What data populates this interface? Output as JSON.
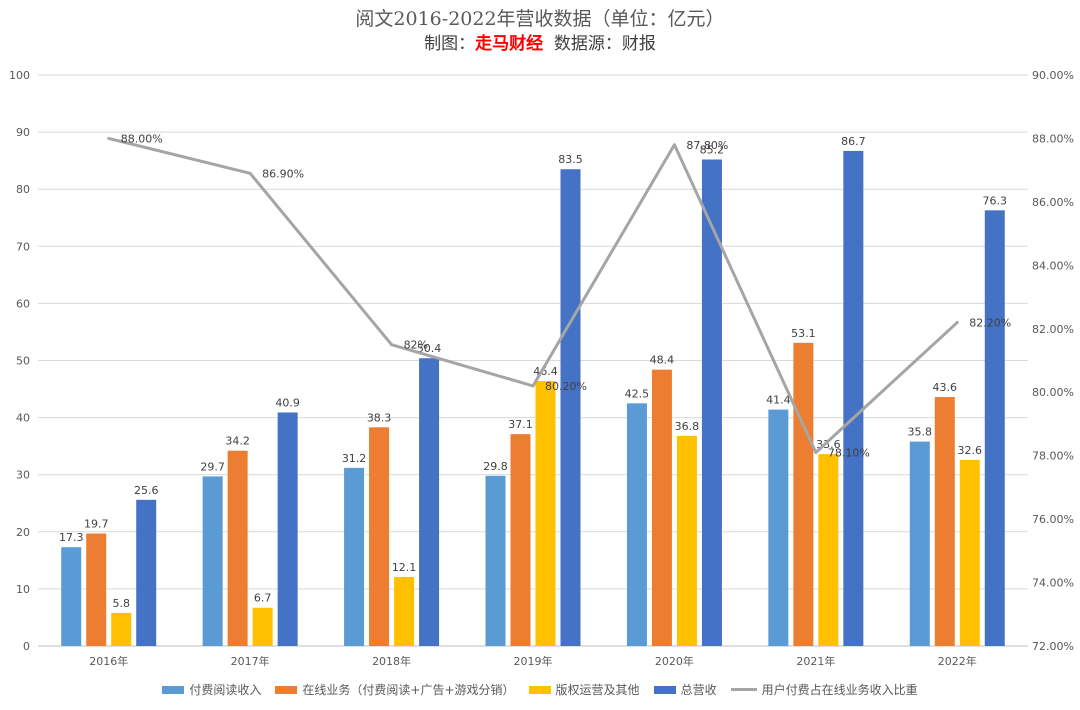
{
  "title": {
    "line1": "阅文2016-2022年营收数据（单位：亿元）",
    "line2_prefix": "制图：",
    "brand": "走马财经",
    "line2_suffix": "  数据源：财报"
  },
  "chart_data": {
    "type": "bar",
    "categories": [
      "2016年",
      "2017年",
      "2018年",
      "2019年",
      "2020年",
      "2021年",
      "2022年"
    ],
    "series": [
      {
        "name": "付费阅读收入",
        "color": "#5b9bd5",
        "values": [
          17.3,
          29.7,
          31.2,
          29.8,
          42.5,
          41.4,
          35.8
        ]
      },
      {
        "name": "在线业务（付费阅读+广告+游戏分销）",
        "color": "#ed7d31",
        "values": [
          19.7,
          34.2,
          38.3,
          37.1,
          48.4,
          53.1,
          43.6
        ]
      },
      {
        "name": "版权运营及其他",
        "color": "#ffc000",
        "values": [
          5.8,
          6.7,
          12.1,
          46.4,
          36.8,
          33.6,
          32.6
        ]
      },
      {
        "name": "总营收",
        "color": "#4472c4",
        "values": [
          25.6,
          40.9,
          50.4,
          83.5,
          85.2,
          86.7,
          76.3
        ]
      }
    ],
    "bar_labels": [
      [
        "17.3",
        "29.7",
        "31.2",
        "29.8",
        "42.5",
        "41.4",
        "35.8"
      ],
      [
        "19.7",
        "34.2",
        "38.3",
        "37.1",
        "48.4",
        "53.1",
        "43.6"
      ],
      [
        "5.8",
        "6.7",
        "12.1",
        "46.4",
        "36.8",
        "33.6",
        "32.6"
      ],
      [
        "25.6",
        "40.9",
        "50.4",
        "83.5",
        "85.2",
        "86.7",
        "76.3"
      ]
    ],
    "line_series": {
      "name": "用户付费占在线业务收入比重",
      "color": "#a5a5a5",
      "values": [
        88.0,
        86.9,
        81.5,
        80.2,
        87.8,
        78.1,
        82.2
      ],
      "labels": [
        "88.00%",
        "86.90%",
        "82%",
        "80.20%",
        "87.80%",
        "78.10%",
        "82.20%"
      ]
    },
    "y_left": {
      "min": 0,
      "max": 100,
      "ticks": [
        "0",
        "10",
        "20",
        "30",
        "40",
        "50",
        "60",
        "70",
        "80",
        "90",
        "100"
      ]
    },
    "y_right": {
      "min": 72,
      "max": 90,
      "ticks": [
        "72.00%",
        "74.00%",
        "76.00%",
        "78.00%",
        "80.00%",
        "82.00%",
        "84.00%",
        "86.00%",
        "88.00%",
        "90.00%"
      ]
    },
    "grid": true,
    "legend_position": "bottom"
  }
}
